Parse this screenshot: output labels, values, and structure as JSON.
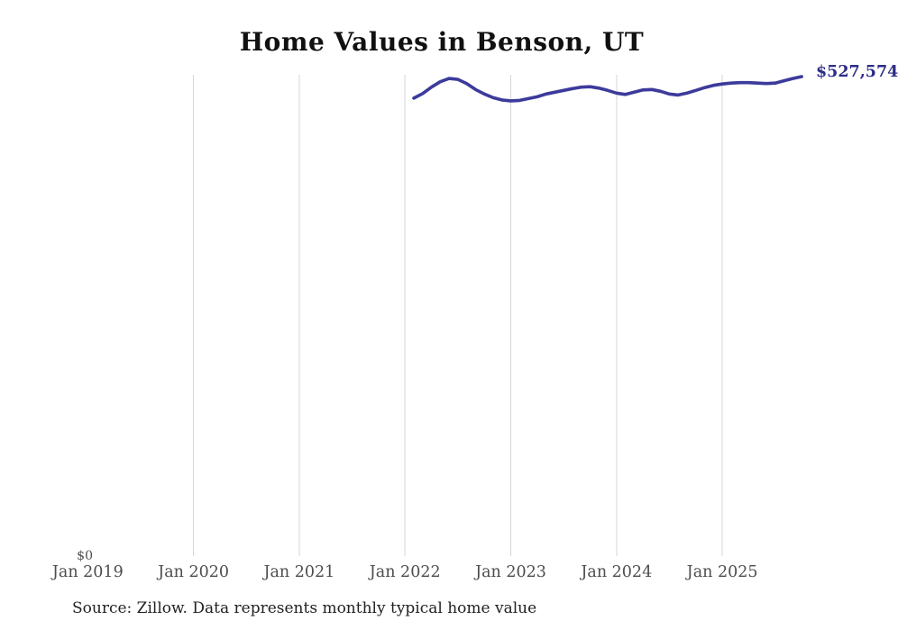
{
  "page": {
    "background": "#ffffff"
  },
  "header": {
    "title": "Home Values in Benson, UT"
  },
  "footer": {
    "source": "Source: Zillow. Data represents monthly typical home value"
  },
  "colors": {
    "line": "#3c3b9b",
    "value_label": "#2d2c87",
    "gridline": "#d6d6d6",
    "tick_label": "#4d4d4d",
    "title": "#111111",
    "source": "#222222"
  },
  "chart_data": {
    "type": "line",
    "title": "Home Values in Benson, UT",
    "xlabel": "",
    "ylabel": "",
    "grid": "vertical-only",
    "legend": "none",
    "y_axis_min": 0,
    "y_zero_label": "$0",
    "latest_value_label": "$527,574",
    "latest_value": 527574,
    "x_tick_labels": [
      "Jan 2019",
      "Jan 2020",
      "Jan 2021",
      "Jan 2022",
      "Jan 2023",
      "Jan 2024",
      "Jan 2025"
    ],
    "series": [
      {
        "name": "Typical home value",
        "start_months_after_first_tick": 37,
        "months": [
          "Feb 2022",
          "Mar 2022",
          "Apr 2022",
          "May 2022",
          "Jun 2022",
          "Jul 2022",
          "Aug 2022",
          "Sep 2022",
          "Oct 2022",
          "Nov 2022",
          "Dec 2022",
          "Jan 2023",
          "Feb 2023",
          "Mar 2023",
          "Apr 2023",
          "May 2023",
          "Jun 2023",
          "Jul 2023",
          "Aug 2023",
          "Sep 2023",
          "Oct 2023",
          "Nov 2023",
          "Dec 2023",
          "Jan 2024",
          "Feb 2024",
          "Mar 2024",
          "Apr 2024",
          "May 2024",
          "Jun 2024",
          "Jul 2024",
          "Aug 2024",
          "Sep 2024",
          "Oct 2024",
          "Nov 2024",
          "Dec 2024",
          "Jan 2025",
          "Feb 2025",
          "Mar 2025",
          "Apr 2025",
          "May 2025",
          "Jun 2025",
          "Jul 2025",
          "Aug 2025",
          "Sep 2025",
          "Oct 2025"
        ],
        "values": [
          504000,
          509000,
          516000,
          522000,
          525500,
          524500,
          520000,
          513500,
          508500,
          504500,
          502000,
          501000,
          501500,
          503500,
          505500,
          508500,
          510500,
          512500,
          514500,
          516000,
          516500,
          515000,
          512500,
          509500,
          508000,
          510500,
          513000,
          513500,
          511500,
          508500,
          507500,
          509500,
          512500,
          515500,
          518000,
          519500,
          520500,
          521000,
          521000,
          520500,
          520000,
          520500,
          523000,
          525500,
          527574
        ]
      }
    ]
  }
}
